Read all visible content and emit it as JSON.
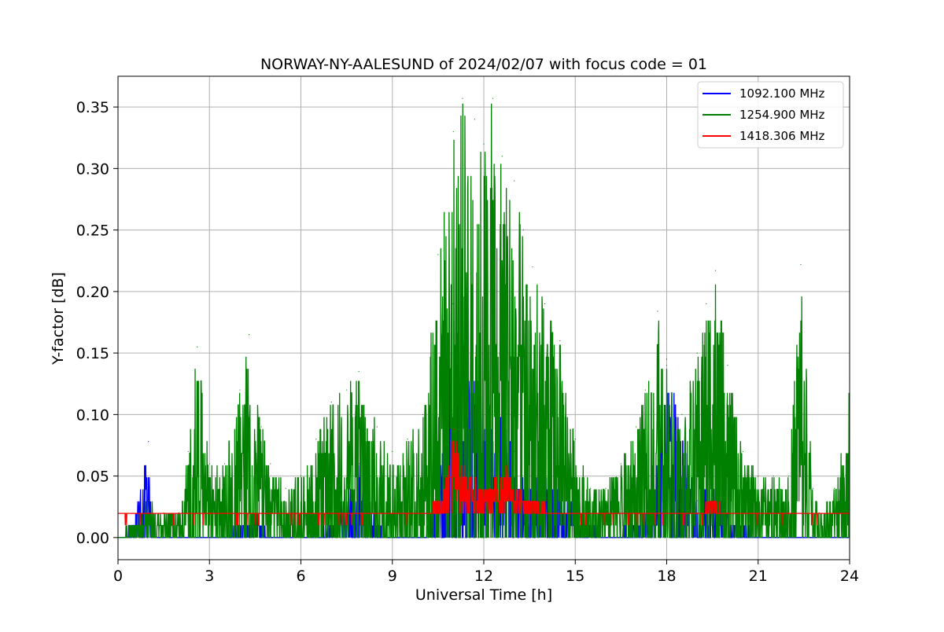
{
  "chart_data": {
    "type": "line",
    "title": "NORWAY-NY-AALESUND of 2024/02/07 with focus code = 01",
    "xlabel": "Universal Time [h]",
    "ylabel": "Y-factor [dB]",
    "xlim": [
      0,
      24
    ],
    "ylim": [
      -0.018,
      0.375
    ],
    "x_ticks": [
      "0",
      "3",
      "6",
      "9",
      "12",
      "15",
      "18",
      "21",
      "24"
    ],
    "y_ticks": [
      "0.00",
      "0.05",
      "0.10",
      "0.15",
      "0.20",
      "0.25",
      "0.30",
      "0.35"
    ],
    "grid": true,
    "legend_position": "top-right",
    "series": [
      {
        "name": "1092.100 MHz",
        "color": "#0000ff",
        "x": [
          0,
          0.5,
          1.0,
          1.1,
          2.0,
          3.0,
          4.0,
          4.5,
          5.0,
          6.0,
          7.0,
          7.9,
          8.5,
          9.0,
          10.0,
          10.5,
          10.8,
          11.0,
          11.3,
          11.6,
          12.0,
          12.5,
          13.0,
          13.5,
          14.0,
          15.0,
          16.0,
          17.0,
          17.5,
          18.0,
          19.0,
          19.5,
          20.0,
          21.0,
          22.0,
          23.0,
          24.0
        ],
        "values": [
          0.0,
          0.01,
          0.078,
          0.005,
          0.0,
          0.0,
          0.01,
          0.02,
          0.0,
          0.0,
          0.01,
          0.06,
          0.01,
          0.0,
          0.0,
          0.04,
          0.1,
          0.19,
          0.11,
          0.145,
          0.09,
          0.11,
          0.07,
          0.04,
          0.06,
          0.02,
          0.0,
          0.01,
          0.02,
          0.145,
          0.03,
          0.048,
          0.02,
          0.0,
          0.0,
          0.0,
          0.0
        ]
      },
      {
        "name": "1254.900 MHz",
        "color": "#008000",
        "x": [
          0,
          0.5,
          1.0,
          1.5,
          2.0,
          2.3,
          2.6,
          3.0,
          3.5,
          4.0,
          4.3,
          4.7,
          5.0,
          5.5,
          6.0,
          6.5,
          7.0,
          7.5,
          7.9,
          8.5,
          9.0,
          9.5,
          10.0,
          10.5,
          11.0,
          11.3,
          11.7,
          12.0,
          12.3,
          12.6,
          13.0,
          13.3,
          13.6,
          14.0,
          14.5,
          15.0,
          15.5,
          16.0,
          16.5,
          17.0,
          17.3,
          17.7,
          18.0,
          18.5,
          19.0,
          19.3,
          19.6,
          20.0,
          20.5,
          21.0,
          21.5,
          22.0,
          22.4,
          22.8,
          23.0,
          23.5,
          24.0
        ],
        "values": [
          0.0,
          0.01,
          0.03,
          0.02,
          0.02,
          0.07,
          0.155,
          0.06,
          0.06,
          0.12,
          0.165,
          0.09,
          0.06,
          0.04,
          0.05,
          0.08,
          0.11,
          0.12,
          0.135,
          0.09,
          0.07,
          0.08,
          0.1,
          0.23,
          0.33,
          0.357,
          0.34,
          0.32,
          0.357,
          0.31,
          0.29,
          0.25,
          0.22,
          0.19,
          0.16,
          0.08,
          0.04,
          0.04,
          0.06,
          0.09,
          0.12,
          0.184,
          0.14,
          0.1,
          0.15,
          0.19,
          0.217,
          0.14,
          0.07,
          0.05,
          0.05,
          0.05,
          0.222,
          0.04,
          0.02,
          0.04,
          0.126
        ]
      },
      {
        "name": "1418.306 MHz",
        "color": "#ff0000",
        "x": [
          0,
          1.0,
          2.0,
          3.0,
          4.0,
          5.0,
          6.0,
          7.0,
          8.0,
          9.0,
          9.5,
          10.0,
          10.5,
          10.8,
          11.0,
          11.3,
          11.6,
          11.9,
          12.2,
          12.5,
          12.8,
          13.0,
          13.5,
          14.0,
          15.0,
          16.0,
          17.0,
          18.0,
          19.0,
          19.5,
          20.0,
          21.0,
          22.0,
          23.0,
          24.0
        ],
        "values": [
          0.02,
          0.02,
          0.02,
          0.02,
          0.02,
          0.02,
          0.02,
          0.02,
          0.02,
          0.02,
          0.02,
          0.02,
          0.03,
          0.05,
          0.088,
          0.06,
          0.05,
          0.04,
          0.04,
          0.05,
          0.06,
          0.04,
          0.03,
          0.025,
          0.02,
          0.02,
          0.02,
          0.02,
          0.02,
          0.03,
          0.02,
          0.02,
          0.02,
          0.02,
          0.02
        ]
      }
    ]
  }
}
